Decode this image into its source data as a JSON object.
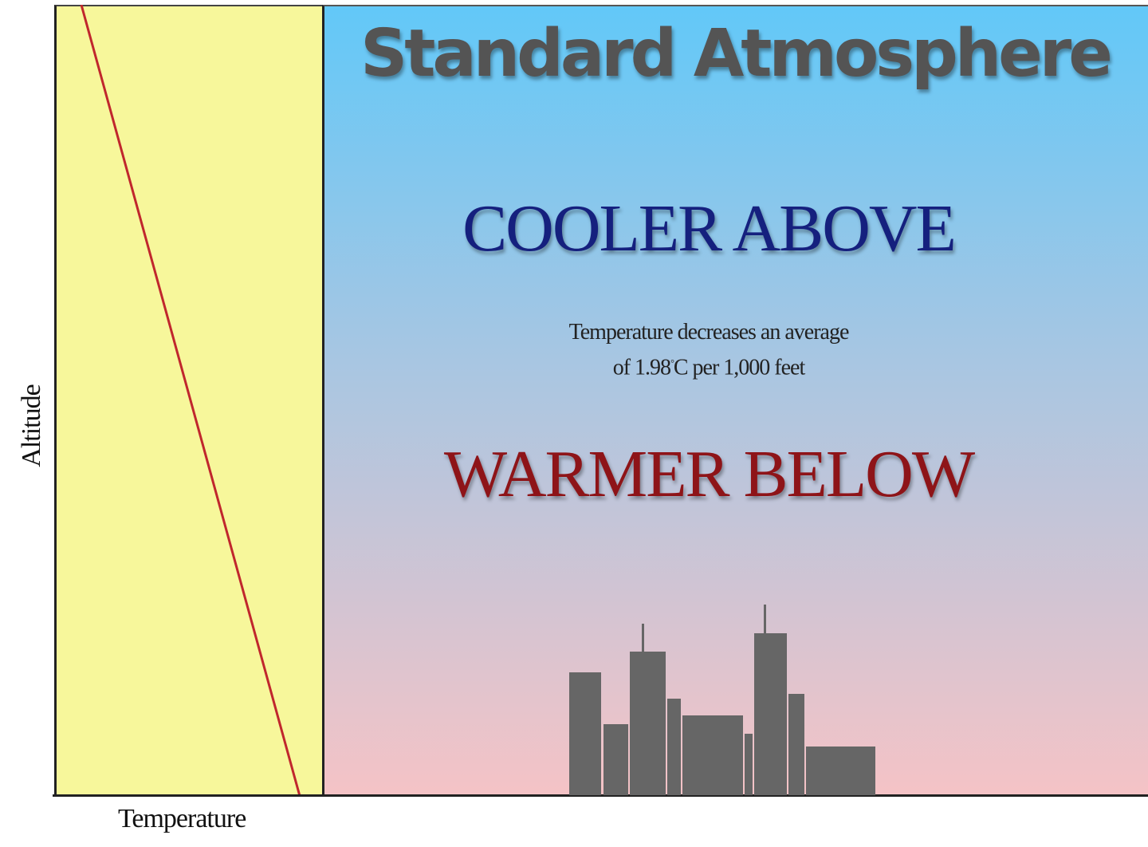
{
  "title": "Standard Atmosphere",
  "upper_caption": "COOLER ABOVE",
  "lower_caption": "WARMER BELOW",
  "note": {
    "line1": "Temperature decreases an average",
    "line2_prefix": "of 1.98",
    "line2_degree": "°",
    "line2_suffix": "C per 1,000 feet"
  },
  "axes": {
    "x_label": "Temperature",
    "y_label": "Altitude"
  },
  "colors": {
    "graph_background": "#f7f79b",
    "lapse_line": "#c0272d",
    "sky_top": "#62c8f8",
    "sky_bottom": "#f5c3c6",
    "title": "#545454",
    "cooler": "#15207e",
    "warmer": "#8e1418",
    "buildings": "#666666"
  },
  "icons": {
    "skyline": "city-skyline-icon"
  }
}
